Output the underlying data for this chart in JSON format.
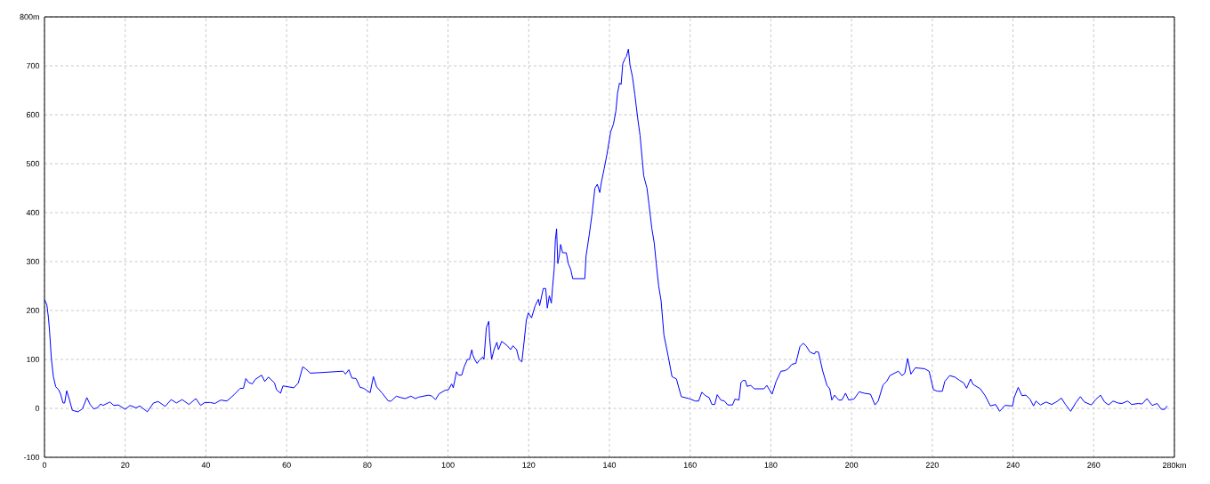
{
  "chart_data": {
    "type": "line",
    "color": "#0000ff",
    "grid": true,
    "marker": "none",
    "line_style": "solid",
    "xlim": [
      0,
      280
    ],
    "ylim": [
      -100,
      800
    ],
    "xticks": [
      0,
      20,
      40,
      60,
      80,
      100,
      120,
      140,
      160,
      180,
      200,
      220,
      240,
      260,
      {
        "value": 280,
        "label": "280km"
      }
    ],
    "yticks": [
      -100,
      0,
      100,
      200,
      300,
      400,
      500,
      600,
      700,
      {
        "value": 800,
        "label": "800m"
      }
    ],
    "x": [
      0,
      0.6,
      1.0,
      1.3,
      1.7,
      2.2,
      2.8,
      3.5,
      4.0,
      4.6,
      5.0,
      5.5,
      6.1,
      6.9,
      8.3,
      9.4,
      10.5,
      11.3,
      12.2,
      13.1,
      13.9,
      14.5,
      16.2,
      17.2,
      18.3,
      20.0,
      21.2,
      22.7,
      23.6,
      25.5,
      27.0,
      28.2,
      29.9,
      31.4,
      32.7,
      34.1,
      35.8,
      37.5,
      38.7,
      39.7,
      41.1,
      42.2,
      43.7,
      45.2,
      47.0,
      48.5,
      49.3,
      49.9,
      50.6,
      51.5,
      52.2,
      53.8,
      54.6,
      55.5,
      57.0,
      57.5,
      58.5,
      59.1,
      61.8,
      62.9,
      64.0,
      64.7,
      65.9,
      68.1,
      74.0,
      74.6,
      75.4,
      76.2,
      77.2,
      78.2,
      79.1,
      80.7,
      81.5,
      82.3,
      83.6,
      85.2,
      85.9,
      87.2,
      88.3,
      89.4,
      90.8,
      91.9,
      92.7,
      95.2,
      96.0,
      96.9,
      97.8,
      99.3,
      100.1,
      100.9,
      101.3,
      102.1,
      102.6,
      103.4,
      104.0,
      104.8,
      105.3,
      105.9,
      106.1,
      106.6,
      107.2,
      107.7,
      108.6,
      108.9,
      109.5,
      110.1,
      110.3,
      110.8,
      111.4,
      112.1,
      112.5,
      113.3,
      114.7,
      115.5,
      116.1,
      117.0,
      117.6,
      118.3,
      118.9,
      119.4,
      119.9,
      120.7,
      121.6,
      122.4,
      122.7,
      123.6,
      124.2,
      124.6,
      125.1,
      125.6,
      125.9,
      126.3,
      126.6,
      126.9,
      127.2,
      127.6,
      127.9,
      128.4,
      129.3,
      129.8,
      130.4,
      130.9,
      133.9,
      134.2,
      135.0,
      135.7,
      136.4,
      137.0,
      137.6,
      138.0,
      138.7,
      139.4,
      140.3,
      141.0,
      141.6,
      142.0,
      142.5,
      142.9,
      143.3,
      143.9,
      144.2,
      144.7,
      145.1,
      145.7,
      146.3,
      147.0,
      147.6,
      148.1,
      148.5,
      149.3,
      149.8,
      150.5,
      151.1,
      151.6,
      152.2,
      152.8,
      153.5,
      154.6,
      155.5,
      156.6,
      157.8,
      159.7,
      161.3,
      162.1,
      162.9,
      163.8,
      164.7,
      165.4,
      166.1,
      166.7,
      167.6,
      168.5,
      169.3,
      170.5,
      171.1,
      172.1,
      172.6,
      173.1,
      173.7,
      174.1,
      175.0,
      175.9,
      178.3,
      179.0,
      180.3,
      181.3,
      182.5,
      183.5,
      184.3,
      185.2,
      186.2,
      187.2,
      188.0,
      188.7,
      189.7,
      190.8,
      191.1,
      191.8,
      192.8,
      193.9,
      194.6,
      195.1,
      195.8,
      196.8,
      197.6,
      198.5,
      199.3,
      200.6,
      201.9,
      203.1,
      204.7,
      205.8,
      206.6,
      207.8,
      208.7,
      209.5,
      211.6,
      212.5,
      213.2,
      213.9,
      214.7,
      215.8,
      218.1,
      219.2,
      220.3,
      221.3,
      222.5,
      223.1,
      224.3,
      225.6,
      226.8,
      227.8,
      228.5,
      229.5,
      230.1,
      231.9,
      233.1,
      234.4,
      235.7,
      236.7,
      238.0,
      239.9,
      240.3,
      241.3,
      242.2,
      243.2,
      244.2,
      245.1,
      245.7,
      246.8,
      248.2,
      249.6,
      250.9,
      252.0,
      253.0,
      254.3,
      255.6,
      256.7,
      257.7,
      259.4,
      260.6,
      261.7,
      262.7,
      263.7,
      264.8,
      266.0,
      267.0,
      268.4,
      269.4,
      271.1,
      272.0,
      273.2,
      274.5,
      275.7,
      276.8,
      277.6,
      278.2
    ],
    "values": [
      223,
      211,
      184,
      153,
      102,
      65,
      44,
      38,
      29,
      11,
      11,
      36,
      20,
      -4,
      -7,
      -1,
      22,
      8,
      -1,
      1,
      9,
      6,
      13,
      6,
      7,
      -2,
      6,
      1,
      5,
      -7,
      11,
      14,
      4,
      18,
      11,
      18,
      8,
      20,
      6,
      12,
      12,
      10,
      17,
      15,
      28,
      41,
      41,
      61,
      53,
      50,
      59,
      68,
      55,
      64,
      52,
      38,
      31,
      46,
      42,
      52,
      85,
      81,
      72,
      73,
      76,
      70,
      79,
      62,
      61,
      43,
      41,
      32,
      65,
      44,
      32,
      15,
      15,
      25,
      22,
      20,
      25,
      20,
      23,
      27,
      25,
      18,
      30,
      37,
      38,
      50,
      42,
      75,
      68,
      68,
      85,
      100,
      100,
      120,
      110,
      100,
      92,
      98,
      105,
      100,
      165,
      178,
      145,
      100,
      120,
      135,
      120,
      137,
      128,
      120,
      128,
      120,
      100,
      95,
      140,
      180,
      195,
      185,
      210,
      223,
      210,
      245,
      245,
      205,
      230,
      215,
      247,
      284,
      344,
      367,
      296,
      314,
      335,
      318,
      318,
      296,
      284,
      265,
      265,
      311,
      355,
      398,
      450,
      458,
      441,
      462,
      490,
      520,
      565,
      581,
      608,
      644,
      665,
      662,
      704,
      716,
      719,
      734,
      701,
      678,
      641,
      593,
      557,
      511,
      475,
      450,
      417,
      368,
      338,
      296,
      250,
      220,
      150,
      105,
      65,
      60,
      24,
      20,
      15,
      15,
      33,
      26,
      22,
      8,
      8,
      28,
      17,
      15,
      7,
      7,
      19,
      17,
      53,
      57,
      57,
      45,
      47,
      40,
      40,
      47,
      29,
      55,
      76,
      77,
      81,
      90,
      92,
      126,
      133,
      128,
      115,
      111,
      116,
      115,
      78,
      47,
      40,
      17,
      27,
      17,
      17,
      31,
      17,
      19,
      34,
      31,
      29,
      7,
      15,
      48,
      55,
      67,
      76,
      67,
      72,
      102,
      70,
      83,
      81,
      76,
      38,
      35,
      35,
      55,
      67,
      64,
      57,
      52,
      41,
      60,
      49,
      40,
      26,
      5,
      8,
      -6,
      6,
      5,
      22,
      43,
      26,
      27,
      19,
      5,
      15,
      7,
      13,
      8,
      14,
      21,
      8,
      -6,
      12,
      24,
      13,
      7,
      19,
      27,
      13,
      7,
      15,
      11,
      10,
      15,
      8,
      10,
      9,
      20,
      6,
      10,
      -2,
      -2,
      5
    ]
  }
}
